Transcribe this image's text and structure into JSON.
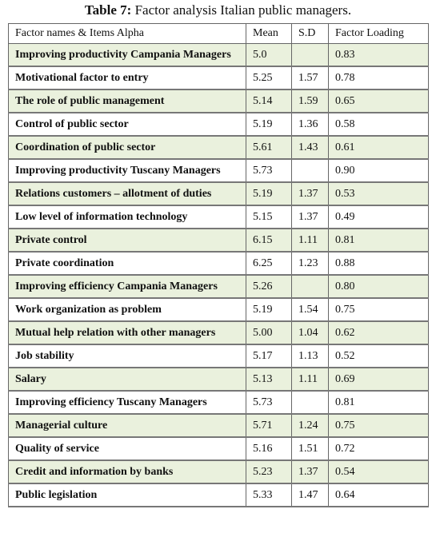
{
  "caption": {
    "label": "Table 7:",
    "text": "Factor analysis Italian public managers."
  },
  "table": {
    "header": [
      "Factor names & Items Alpha",
      "Mean",
      "S.D",
      "Factor Loading"
    ],
    "rows": [
      {
        "name": "Improving productivity Campania Managers",
        "mean": "5.0",
        "loading": "0.83"
      },
      {
        "name": "Motivational factor to entry",
        "mean": "5.25",
        "sd": "1.57",
        "loading": "0.78"
      },
      {
        "name": "The role of public management",
        "mean": "5.14",
        "sd": "1.59",
        "loading": "0.65"
      },
      {
        "name": "Control of public sector",
        "mean": "5.19",
        "sd": "1.36",
        "loading": "0.58"
      },
      {
        "name": "Coordination of public sector",
        "mean": "5.61",
        "sd": "1.43",
        "loading": "0.61"
      },
      {
        "name": "Improving productivity Tuscany Managers",
        "mean": "5.73",
        "loading": "0.90"
      },
      {
        "name": "Relations customers – allotment of duties",
        "mean": "5.19",
        "sd": "1.37",
        "loading": "0.53"
      },
      {
        "name": "Low level of information technology",
        "mean": "5.15",
        "sd": "1.37",
        "loading": "0.49"
      },
      {
        "name": "Private control",
        "mean": "6.15",
        "sd": "1.11",
        "loading": "0.81"
      },
      {
        "name": "Private coordination",
        "mean": "6.25",
        "sd": "1.23",
        "loading": "0.88"
      },
      {
        "name": "Improving efficiency Campania Managers",
        "mean": "5.26",
        "loading": "0.80"
      },
      {
        "name": "Work organization as problem",
        "mean": "5.19",
        "sd": "1.54",
        "loading": "0.75"
      },
      {
        "name": "Mutual help relation with other managers",
        "mean": "5.00",
        "sd": "1.04",
        "loading": "0.62"
      },
      {
        "name": "Job stability",
        "mean": "5.17",
        "sd": "1.13",
        "loading": "0.52"
      },
      {
        "name": "Salary",
        "mean": "5.13",
        "sd": "1.11",
        "loading": "0.69"
      },
      {
        "name": "Improving efficiency Tuscany Managers",
        "mean": "5.73",
        "loading": "0.81"
      },
      {
        "name": "Managerial culture",
        "mean": "5.71",
        "sd": "1.24",
        "loading": "0.75"
      },
      {
        "name": "Quality of service",
        "mean": "5.16",
        "sd": "1.51",
        "loading": "0.72"
      },
      {
        "name": "Credit and information by banks",
        "mean": "5.23",
        "sd": "1.37",
        "loading": "0.54"
      },
      {
        "name": "Public legislation",
        "mean": "5.33",
        "sd": "1.47",
        "loading": "0.64"
      }
    ]
  }
}
